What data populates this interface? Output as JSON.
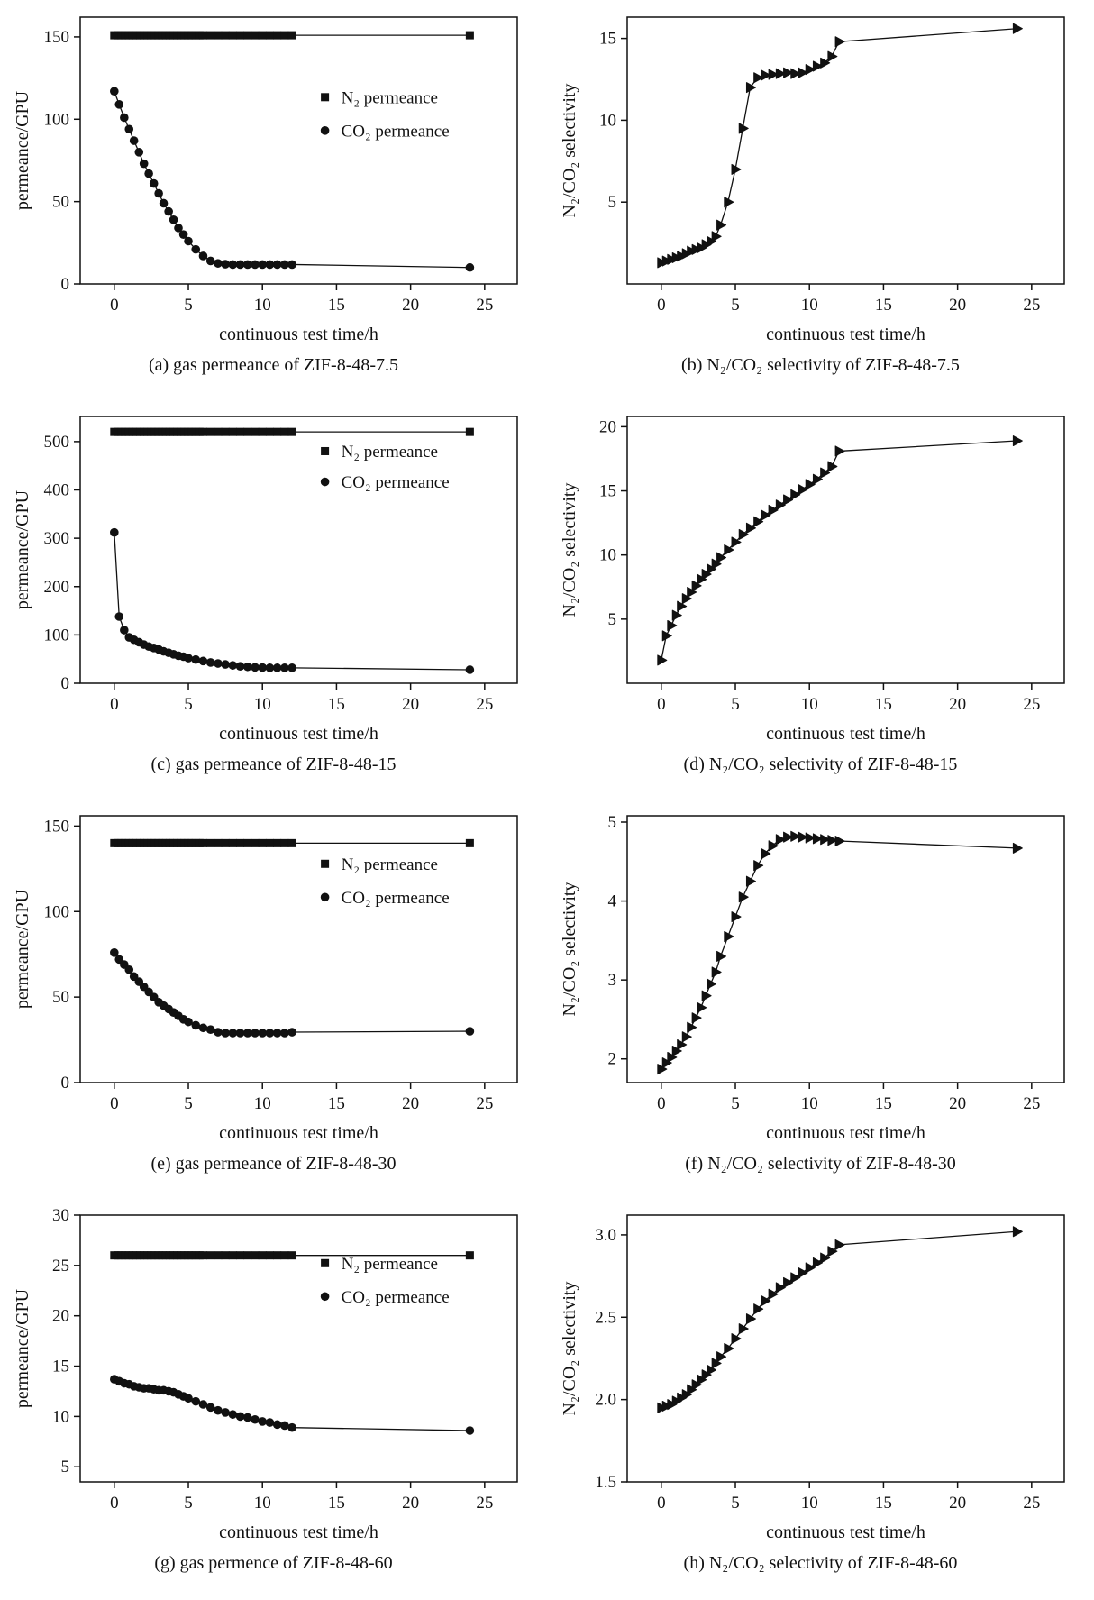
{
  "page": {
    "background": "#ffffff",
    "ink": "#111111"
  },
  "chart_data": [
    {
      "id": "a",
      "type": "line",
      "caption": "(a) gas permeance of ZIF-8-48-7.5",
      "xlabel": "continuous test time/h",
      "ylabel": "permeance/GPU",
      "xlim": [
        -2.3,
        27.2
      ],
      "ylim": [
        0,
        162
      ],
      "xticks": [
        0,
        5,
        10,
        15,
        20,
        25
      ],
      "xtick_labels": [
        "0",
        "5",
        "10",
        "15",
        "20",
        "25"
      ],
      "yticks": [
        0,
        50,
        100,
        150
      ],
      "ytick_labels": [
        "0",
        "50",
        "100",
        "150"
      ],
      "legend": {
        "x": 0.56,
        "y": 0.3,
        "dy": 0.125
      },
      "series": [
        {
          "name": "N₂ permeance",
          "marker": "square",
          "x": [
            0,
            0.25,
            0.5,
            0.75,
            1,
            1.25,
            1.5,
            1.75,
            2,
            2.25,
            2.5,
            2.75,
            3,
            3.25,
            3.5,
            3.75,
            4,
            4.25,
            4.5,
            4.75,
            5,
            5.25,
            5.5,
            5.75,
            6,
            6.5,
            7,
            7.5,
            8,
            8.5,
            9,
            9.5,
            10,
            10.5,
            11,
            11.5,
            12,
            24
          ],
          "y_const": 151
        },
        {
          "name": "CO₂ permeance",
          "marker": "circle",
          "x": [
            0,
            0.33,
            0.67,
            1,
            1.33,
            1.67,
            2,
            2.33,
            2.67,
            3,
            3.33,
            3.67,
            4,
            4.33,
            4.67,
            5,
            5.5,
            6,
            6.5,
            7,
            7.5,
            8,
            8.5,
            9,
            9.5,
            10,
            10.5,
            11,
            11.5,
            12,
            24
          ],
          "y": [
            117,
            109,
            101,
            94,
            87,
            80,
            73,
            67,
            61,
            55,
            49,
            44,
            39,
            34,
            30,
            26,
            21,
            17,
            14,
            12.5,
            12,
            11.8,
            11.8,
            11.8,
            11.8,
            11.8,
            11.8,
            11.8,
            11.8,
            11.8,
            10
          ]
        }
      ]
    },
    {
      "id": "b",
      "type": "line",
      "caption": "(b) N₂/CO₂ selectivity of ZIF-8-48-7.5",
      "xlabel": "continuous test time/h",
      "ylabel": "N₂/CO₂ selectivity",
      "xlim": [
        -2.3,
        27.2
      ],
      "ylim": [
        0,
        16.3
      ],
      "xticks": [
        0,
        5,
        10,
        15,
        20,
        25
      ],
      "xtick_labels": [
        "0",
        "5",
        "10",
        "15",
        "20",
        "25"
      ],
      "yticks": [
        5,
        10,
        15
      ],
      "ytick_labels": [
        "5",
        "10",
        "15"
      ],
      "legend": null,
      "series": [
        {
          "name": "N₂/CO₂ selectivity",
          "marker": "triangle-right",
          "x": [
            0,
            0.33,
            0.67,
            1,
            1.33,
            1.67,
            2,
            2.33,
            2.67,
            3,
            3.33,
            3.67,
            4,
            4.5,
            5,
            5.5,
            6,
            6.5,
            7,
            7.5,
            8,
            8.5,
            9,
            9.5,
            10,
            10.5,
            11,
            11.5,
            12,
            24
          ],
          "y": [
            1.3,
            1.4,
            1.5,
            1.6,
            1.7,
            1.85,
            2.0,
            2.1,
            2.2,
            2.4,
            2.6,
            2.9,
            3.6,
            5.0,
            7.0,
            9.5,
            12.0,
            12.6,
            12.75,
            12.8,
            12.85,
            12.9,
            12.85,
            12.9,
            13.1,
            13.3,
            13.5,
            13.9,
            14.8,
            15.6
          ]
        }
      ]
    },
    {
      "id": "c",
      "type": "line",
      "caption": "(c) gas permeance of ZIF-8-48-15",
      "xlabel": "continuous test time/h",
      "ylabel": "permeance/GPU",
      "xlim": [
        -2.3,
        27.2
      ],
      "ylim": [
        0,
        552
      ],
      "xticks": [
        0,
        5,
        10,
        15,
        20,
        25
      ],
      "xtick_labels": [
        "0",
        "5",
        "10",
        "15",
        "20",
        "25"
      ],
      "yticks": [
        0,
        100,
        200,
        300,
        400,
        500
      ],
      "ytick_labels": [
        "0",
        "100",
        "200",
        "300",
        "400",
        "500"
      ],
      "legend": {
        "x": 0.56,
        "y": 0.13,
        "dy": 0.115
      },
      "series": [
        {
          "name": "N₂ permeance",
          "marker": "square",
          "x": [
            0,
            0.25,
            0.5,
            0.75,
            1,
            1.25,
            1.5,
            1.75,
            2,
            2.25,
            2.5,
            2.75,
            3,
            3.25,
            3.5,
            3.75,
            4,
            4.25,
            4.5,
            4.75,
            5,
            5.25,
            5.5,
            5.75,
            6,
            6.5,
            7,
            7.5,
            8,
            8.5,
            9,
            9.5,
            10,
            10.5,
            11,
            11.5,
            12,
            24
          ],
          "y_const": 520
        },
        {
          "name": "CO₂ permeance",
          "marker": "circle",
          "x": [
            0,
            0.33,
            0.67,
            1,
            1.33,
            1.67,
            2,
            2.33,
            2.67,
            3,
            3.33,
            3.67,
            4,
            4.33,
            4.67,
            5,
            5.5,
            6,
            6.5,
            7,
            7.5,
            8,
            8.5,
            9,
            9.5,
            10,
            10.5,
            11,
            11.5,
            12,
            24
          ],
          "y": [
            312,
            138,
            110,
            95,
            90,
            85,
            80,
            76,
            73,
            70,
            66,
            63,
            60,
            57,
            55,
            52,
            49,
            46,
            43,
            41,
            39,
            37,
            35,
            34,
            33,
            32.5,
            32,
            32,
            32,
            32,
            28
          ]
        }
      ]
    },
    {
      "id": "d",
      "type": "line",
      "caption": "(d) N₂/CO₂ selectivity of ZIF-8-48-15",
      "xlabel": "continuous test time/h",
      "ylabel": "N₂/CO₂ selectivity",
      "xlim": [
        -2.3,
        27.2
      ],
      "ylim": [
        0,
        20.8
      ],
      "xticks": [
        0,
        5,
        10,
        15,
        20,
        25
      ],
      "xtick_labels": [
        "0",
        "5",
        "10",
        "15",
        "20",
        "25"
      ],
      "yticks": [
        5,
        10,
        15,
        20
      ],
      "ytick_labels": [
        "5",
        "10",
        "15",
        "20"
      ],
      "legend": null,
      "series": [
        {
          "name": "N₂/CO₂ selectivity",
          "marker": "triangle-right",
          "x": [
            0,
            0.33,
            0.67,
            1,
            1.33,
            1.67,
            2,
            2.33,
            2.67,
            3,
            3.33,
            3.67,
            4,
            4.5,
            5,
            5.5,
            6,
            6.5,
            7,
            7.5,
            8,
            8.5,
            9,
            9.5,
            10,
            10.5,
            11,
            11.5,
            12,
            24
          ],
          "y": [
            1.8,
            3.7,
            4.5,
            5.3,
            6.0,
            6.6,
            7.1,
            7.6,
            8.1,
            8.5,
            8.9,
            9.3,
            9.8,
            10.4,
            11.0,
            11.6,
            12.1,
            12.6,
            13.1,
            13.5,
            13.9,
            14.3,
            14.7,
            15.1,
            15.5,
            15.9,
            16.4,
            16.9,
            18.1,
            18.9
          ]
        }
      ]
    },
    {
      "id": "e",
      "type": "line",
      "caption": "(e) gas permeance of ZIF-8-48-30",
      "xlabel": "continuous test time/h",
      "ylabel": "permeance/GPU",
      "xlim": [
        -2.3,
        27.2
      ],
      "ylim": [
        0,
        156
      ],
      "xticks": [
        0,
        5,
        10,
        15,
        20,
        25
      ],
      "xtick_labels": [
        "0",
        "5",
        "10",
        "15",
        "20",
        "25"
      ],
      "yticks": [
        0,
        50,
        100,
        150
      ],
      "ytick_labels": [
        "0",
        "50",
        "100",
        "150"
      ],
      "legend": {
        "x": 0.56,
        "y": 0.18,
        "dy": 0.125
      },
      "series": [
        {
          "name": "N₂ permeance",
          "marker": "square",
          "x": [
            0,
            0.25,
            0.5,
            0.75,
            1,
            1.25,
            1.5,
            1.75,
            2,
            2.25,
            2.5,
            2.75,
            3,
            3.25,
            3.5,
            3.75,
            4,
            4.25,
            4.5,
            4.75,
            5,
            5.25,
            5.5,
            5.75,
            6,
            6.5,
            7,
            7.5,
            8,
            8.5,
            9,
            9.5,
            10,
            10.5,
            11,
            11.5,
            12,
            24
          ],
          "y_const": 140
        },
        {
          "name": "CO₂ permeance",
          "marker": "circle",
          "x": [
            0,
            0.33,
            0.67,
            1,
            1.33,
            1.67,
            2,
            2.33,
            2.67,
            3,
            3.33,
            3.67,
            4,
            4.33,
            4.67,
            5,
            5.5,
            6,
            6.5,
            7,
            7.5,
            8,
            8.5,
            9,
            9.5,
            10,
            10.5,
            11,
            11.5,
            12,
            24
          ],
          "y": [
            76,
            72,
            69,
            66,
            62,
            59,
            56,
            53,
            50,
            47,
            45,
            43,
            41,
            39,
            37,
            35.5,
            33.5,
            32,
            31,
            29.5,
            29,
            29,
            29,
            29,
            29,
            29,
            29,
            29,
            29,
            29.5,
            30
          ]
        }
      ]
    },
    {
      "id": "f",
      "type": "line",
      "caption": "(f) N₂/CO₂ selectivity of ZIF-8-48-30",
      "xlabel": "continuous test time/h",
      "ylabel": "N₂/CO₂ selectivity",
      "xlim": [
        -2.3,
        27.2
      ],
      "ylim": [
        1.7,
        5.08
      ],
      "xticks": [
        0,
        5,
        10,
        15,
        20,
        25
      ],
      "xtick_labels": [
        "0",
        "5",
        "10",
        "15",
        "20",
        "25"
      ],
      "yticks": [
        2,
        3,
        4,
        5
      ],
      "ytick_labels": [
        "2",
        "3",
        "4",
        "5"
      ],
      "legend": null,
      "series": [
        {
          "name": "N₂/CO₂ selectivity",
          "marker": "triangle-right",
          "x": [
            0,
            0.33,
            0.67,
            1,
            1.33,
            1.67,
            2,
            2.33,
            2.67,
            3,
            3.33,
            3.67,
            4,
            4.5,
            5,
            5.5,
            6,
            6.5,
            7,
            7.5,
            8,
            8.5,
            9,
            9.5,
            10,
            10.5,
            11,
            11.5,
            12,
            24
          ],
          "y": [
            1.87,
            1.95,
            2.02,
            2.1,
            2.18,
            2.28,
            2.4,
            2.52,
            2.65,
            2.8,
            2.95,
            3.1,
            3.3,
            3.55,
            3.8,
            4.05,
            4.25,
            4.45,
            4.6,
            4.7,
            4.78,
            4.81,
            4.82,
            4.81,
            4.8,
            4.79,
            4.78,
            4.77,
            4.76,
            4.67
          ]
        }
      ]
    },
    {
      "id": "g",
      "type": "line",
      "caption": "(g) gas permence of ZIF-8-48-60",
      "xlabel": "continuous test time/h",
      "ylabel": "permeance/GPU",
      "xlim": [
        -2.3,
        27.2
      ],
      "ylim": [
        3.5,
        30
      ],
      "xticks": [
        0,
        5,
        10,
        15,
        20,
        25
      ],
      "xtick_labels": [
        "0",
        "5",
        "10",
        "15",
        "20",
        "25"
      ],
      "yticks": [
        5,
        10,
        15,
        20,
        25,
        30
      ],
      "ytick_labels": [
        "5",
        "10",
        "15",
        "20",
        "25",
        "30"
      ],
      "legend": {
        "x": 0.56,
        "y": 0.18,
        "dy": 0.125
      },
      "series": [
        {
          "name": "N₂ permeance",
          "marker": "square",
          "x": [
            0,
            0.25,
            0.5,
            0.75,
            1,
            1.25,
            1.5,
            1.75,
            2,
            2.25,
            2.5,
            2.75,
            3,
            3.25,
            3.5,
            3.75,
            4,
            4.25,
            4.5,
            4.75,
            5,
            5.25,
            5.5,
            5.75,
            6,
            6.5,
            7,
            7.5,
            8,
            8.5,
            9,
            9.5,
            10,
            10.5,
            11,
            11.5,
            12,
            24
          ],
          "y_const": 26
        },
        {
          "name": "CO₂ permeance",
          "marker": "circle",
          "x": [
            0,
            0.33,
            0.67,
            1,
            1.33,
            1.67,
            2,
            2.33,
            2.67,
            3,
            3.33,
            3.67,
            4,
            4.33,
            4.67,
            5,
            5.5,
            6,
            6.5,
            7,
            7.5,
            8,
            8.5,
            9,
            9.5,
            10,
            10.5,
            11,
            11.5,
            12,
            24
          ],
          "y": [
            13.7,
            13.5,
            13.3,
            13.2,
            13.0,
            12.9,
            12.8,
            12.8,
            12.7,
            12.6,
            12.6,
            12.5,
            12.4,
            12.2,
            12.0,
            11.8,
            11.5,
            11.2,
            10.9,
            10.6,
            10.4,
            10.2,
            10.0,
            9.9,
            9.7,
            9.5,
            9.4,
            9.2,
            9.1,
            8.9,
            8.6
          ]
        }
      ]
    },
    {
      "id": "h",
      "type": "line",
      "caption": "(h) N₂/CO₂ selectivity of ZIF-8-48-60",
      "xlabel": "continuous test time/h",
      "ylabel": "N₂/CO₂ selectivity",
      "xlim": [
        -2.3,
        27.2
      ],
      "ylim": [
        1.5,
        3.12
      ],
      "xticks": [
        0,
        5,
        10,
        15,
        20,
        25
      ],
      "xtick_labels": [
        "0",
        "5",
        "10",
        "15",
        "20",
        "25"
      ],
      "yticks": [
        1.5,
        2.0,
        2.5,
        3.0
      ],
      "ytick_labels": [
        "1.5",
        "2.0",
        "2.5",
        "3.0"
      ],
      "legend": null,
      "series": [
        {
          "name": "N₂/CO₂ selectivity",
          "marker": "triangle-right",
          "x": [
            0,
            0.33,
            0.67,
            1,
            1.33,
            1.67,
            2,
            2.33,
            2.67,
            3,
            3.33,
            3.67,
            4,
            4.5,
            5,
            5.5,
            6,
            6.5,
            7,
            7.5,
            8,
            8.5,
            9,
            9.5,
            10,
            10.5,
            11,
            11.5,
            12,
            24
          ],
          "y": [
            1.95,
            1.96,
            1.97,
            1.99,
            2.01,
            2.03,
            2.06,
            2.09,
            2.12,
            2.15,
            2.18,
            2.22,
            2.26,
            2.31,
            2.37,
            2.43,
            2.49,
            2.55,
            2.6,
            2.64,
            2.68,
            2.71,
            2.74,
            2.77,
            2.8,
            2.83,
            2.86,
            2.9,
            2.94,
            3.02
          ]
        }
      ]
    }
  ]
}
